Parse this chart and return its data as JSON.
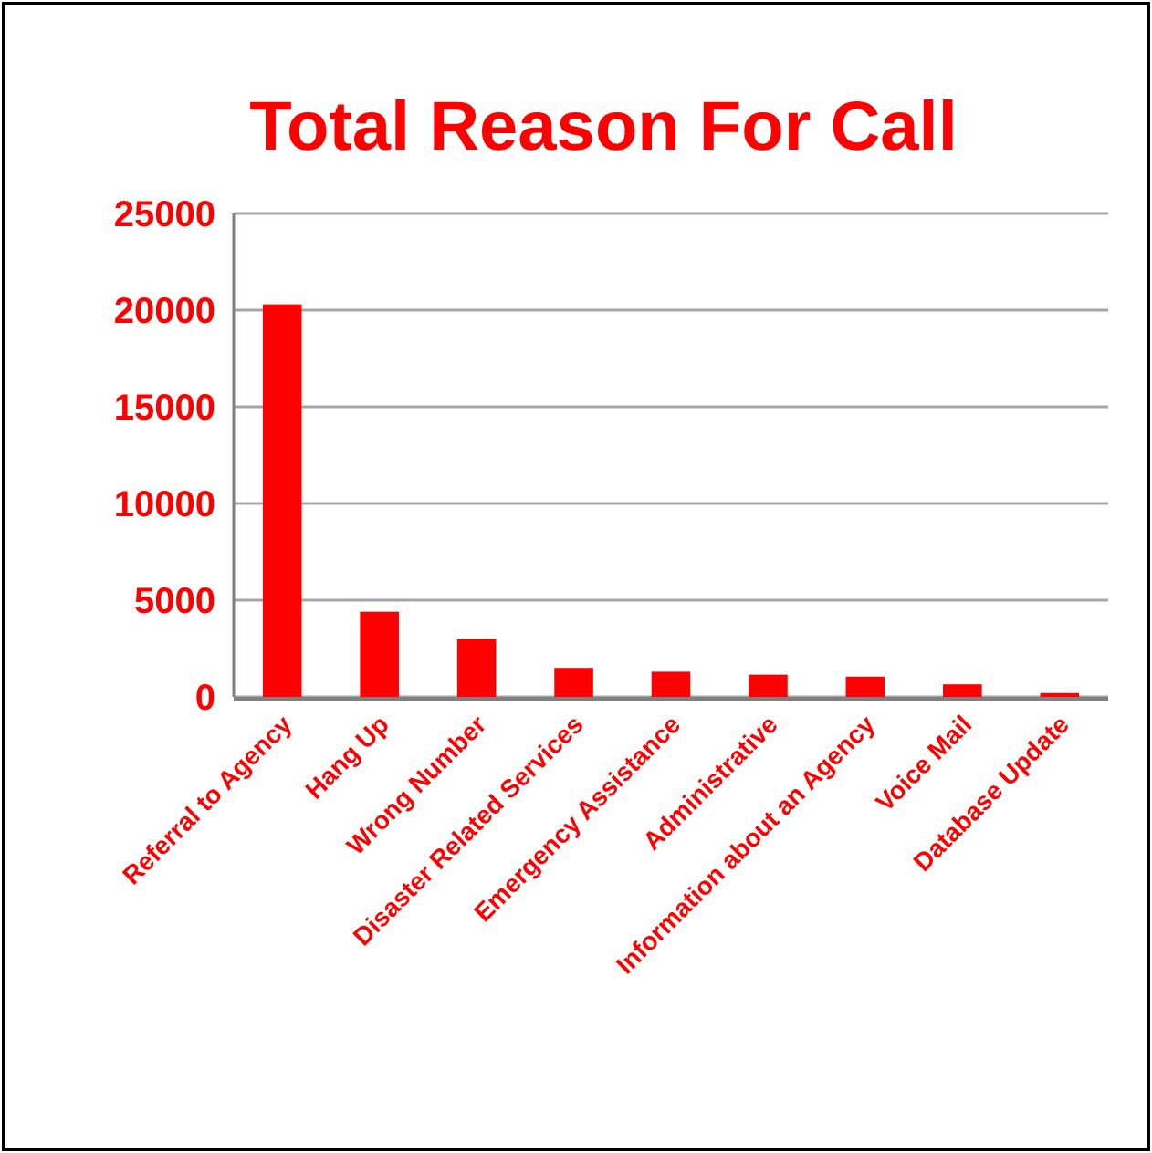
{
  "chart_data": {
    "type": "bar",
    "title": "Total Reason For Call",
    "categories": [
      "Referral to Agency",
      "Hang Up",
      "Wrong Number",
      "Disaster Related Services",
      "Emergency Assistance",
      "Administrative",
      "Information about an Agency",
      "Voice Mail",
      "Database Update"
    ],
    "values": [
      20300,
      4400,
      3000,
      1500,
      1300,
      1150,
      1050,
      650,
      200
    ],
    "color": "#ff0000",
    "ylim": [
      0,
      25000
    ],
    "yticks": [
      0,
      5000,
      10000,
      15000,
      20000,
      25000
    ],
    "grid": "y"
  }
}
